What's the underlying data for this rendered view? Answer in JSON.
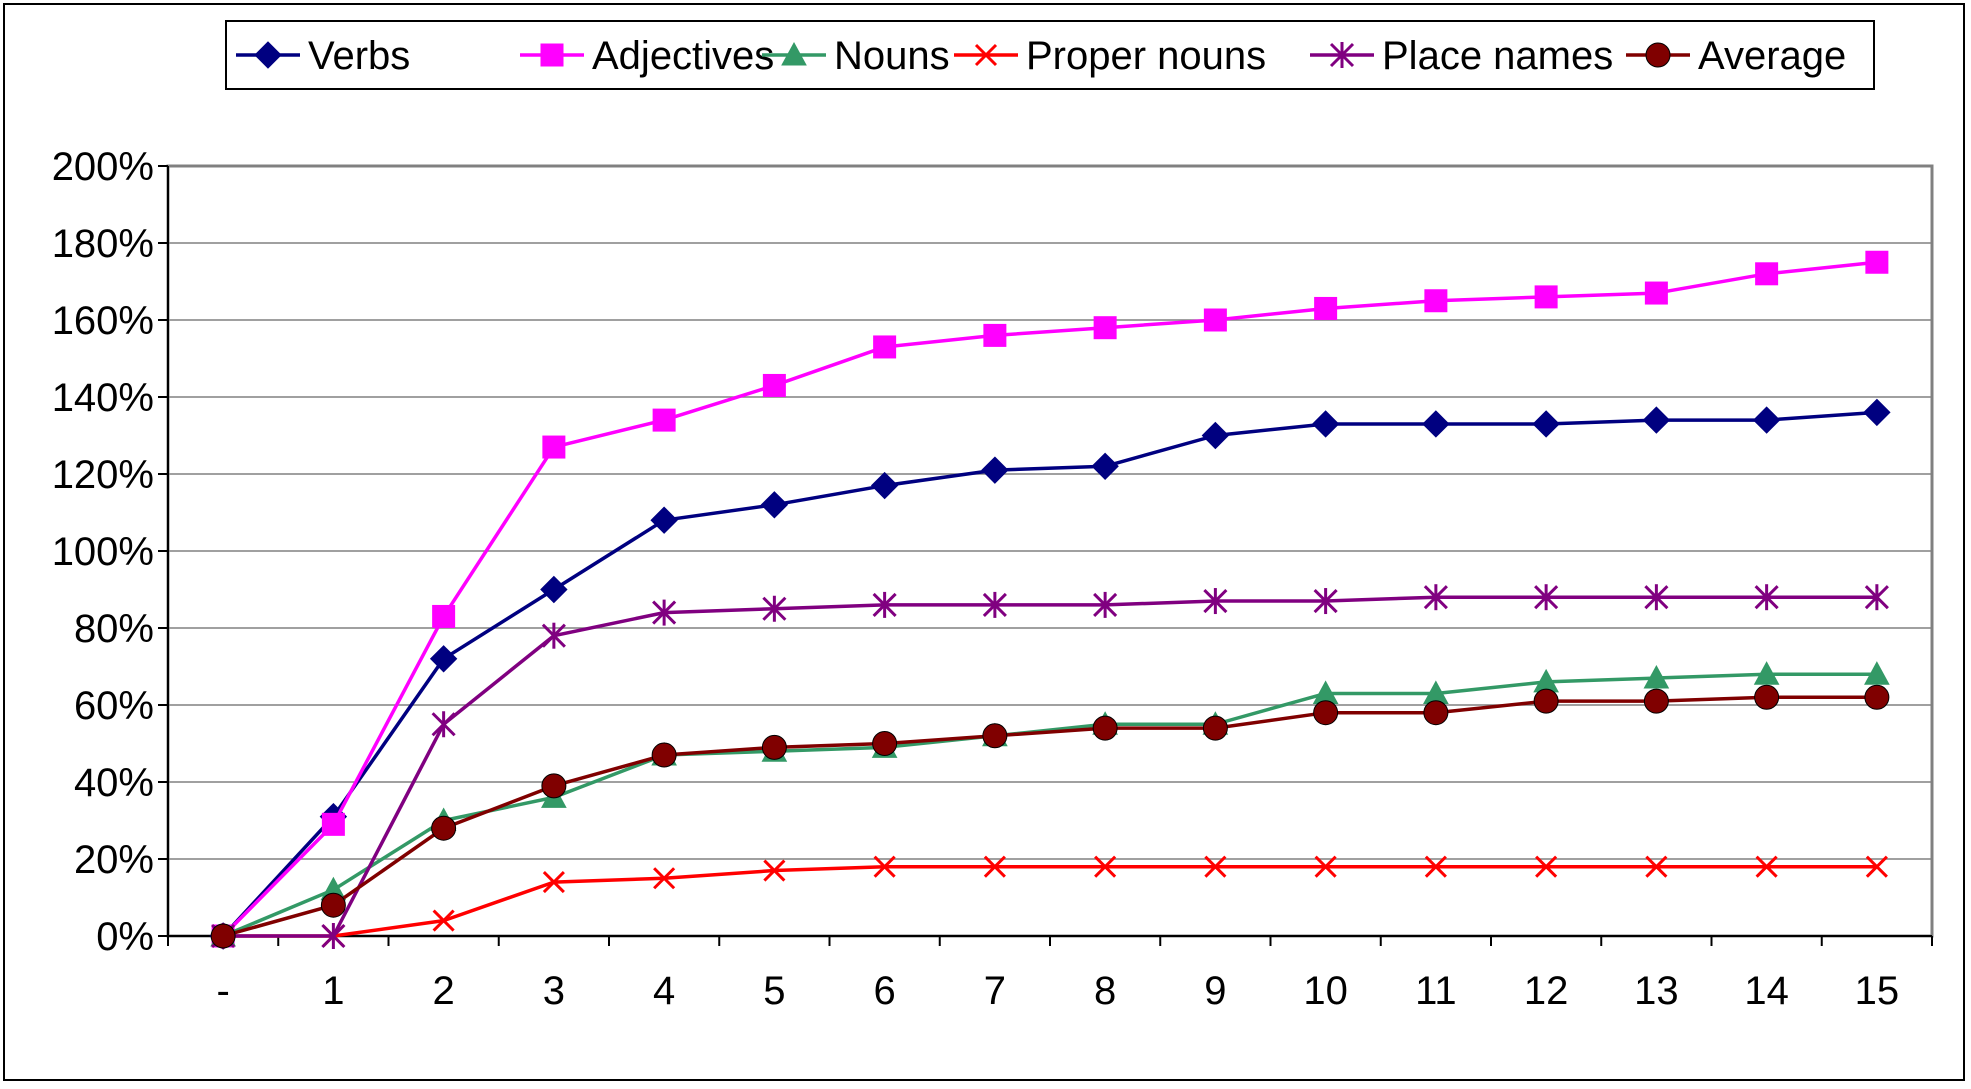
{
  "chart_data": {
    "type": "line",
    "title": "",
    "xlabel": "",
    "ylabel": "",
    "categories": [
      "-",
      "1",
      "2",
      "3",
      "4",
      "5",
      "6",
      "7",
      "8",
      "9",
      "10",
      "11",
      "12",
      "13",
      "14",
      "15"
    ],
    "ylim": [
      0,
      200
    ],
    "y_ticks": [
      0,
      20,
      40,
      60,
      80,
      100,
      120,
      140,
      160,
      180,
      200
    ],
    "y_tick_labels": [
      "0%",
      "20%",
      "40%",
      "60%",
      "80%",
      "100%",
      "120%",
      "140%",
      "160%",
      "180%",
      "200%"
    ],
    "grid": true,
    "legend_position": "top",
    "series": [
      {
        "name": "Verbs",
        "color": "#000080",
        "marker": "diamond",
        "values": [
          0,
          31,
          72,
          90,
          108,
          112,
          117,
          121,
          122,
          130,
          133,
          133,
          133,
          134,
          134,
          136
        ]
      },
      {
        "name": "Adjectives",
        "color": "#FF00FF",
        "marker": "square",
        "values": [
          0,
          29,
          83,
          127,
          134,
          143,
          153,
          156,
          158,
          160,
          163,
          165,
          166,
          167,
          172,
          175
        ]
      },
      {
        "name": "Nouns",
        "color": "#339966",
        "marker": "triangle",
        "values": [
          0,
          12,
          30,
          36,
          47,
          48,
          49,
          52,
          55,
          55,
          63,
          63,
          66,
          67,
          68,
          68
        ]
      },
      {
        "name": "Proper nouns",
        "color": "#FF0000",
        "marker": "x",
        "values": [
          0,
          0,
          4,
          14,
          15,
          17,
          18,
          18,
          18,
          18,
          18,
          18,
          18,
          18,
          18,
          18
        ]
      },
      {
        "name": "Place names",
        "color": "#800080",
        "marker": "star",
        "values": [
          0,
          0,
          55,
          78,
          84,
          85,
          86,
          86,
          86,
          87,
          87,
          88,
          88,
          88,
          88,
          88
        ]
      },
      {
        "name": "Average",
        "color": "#800000",
        "marker": "circle",
        "values": [
          0,
          8,
          28,
          39,
          47,
          49,
          50,
          52,
          54,
          54,
          58,
          58,
          61,
          61,
          62,
          62
        ]
      }
    ]
  }
}
